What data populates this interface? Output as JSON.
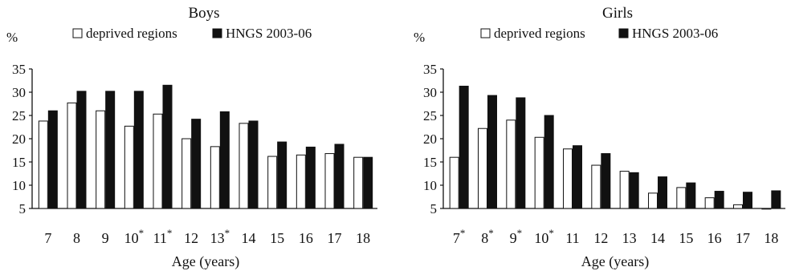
{
  "chart_data": [
    {
      "type": "bar",
      "title": "Boys",
      "ylabel": "%",
      "xlabel": "Age (years)",
      "ylim": [
        5,
        35
      ],
      "yticks": [
        5,
        10,
        15,
        20,
        25,
        30,
        35
      ],
      "grid": false,
      "legend_position": "top",
      "categories": [
        "7",
        "8",
        "9",
        "10*",
        "11*",
        "12",
        "13*",
        "14",
        "15",
        "16",
        "17",
        "18"
      ],
      "series": [
        {
          "name": "deprived regions",
          "color": "#ffffff",
          "values": [
            23.8,
            27.7,
            26.0,
            22.7,
            25.3,
            20.0,
            18.3,
            23.3,
            16.2,
            16.5,
            16.8,
            16.0
          ]
        },
        {
          "name": "HNGS 2003-06",
          "color": "#111111",
          "values": [
            26.0,
            30.2,
            30.2,
            30.2,
            31.5,
            24.2,
            25.8,
            23.8,
            19.3,
            18.2,
            18.8,
            16.0
          ]
        }
      ]
    },
    {
      "type": "bar",
      "title": "Girls",
      "ylabel": "%",
      "xlabel": "Age (years)",
      "ylim": [
        5,
        35
      ],
      "yticks": [
        5,
        10,
        15,
        20,
        25,
        30,
        35
      ],
      "grid": false,
      "legend_position": "top",
      "categories": [
        "7*",
        "8*",
        "9*",
        "10*",
        "11",
        "12",
        "13",
        "14",
        "15",
        "16",
        "17",
        "18"
      ],
      "series": [
        {
          "name": "deprived regions",
          "color": "#ffffff",
          "values": [
            16.0,
            22.2,
            24.0,
            20.3,
            17.8,
            14.3,
            13.0,
            8.3,
            9.5,
            7.3,
            5.8,
            5.0
          ]
        },
        {
          "name": "HNGS 2003-06",
          "color": "#111111",
          "values": [
            31.3,
            29.3,
            28.8,
            25.0,
            18.5,
            16.8,
            12.7,
            11.8,
            10.5,
            8.7,
            8.5,
            8.8
          ]
        }
      ]
    }
  ]
}
